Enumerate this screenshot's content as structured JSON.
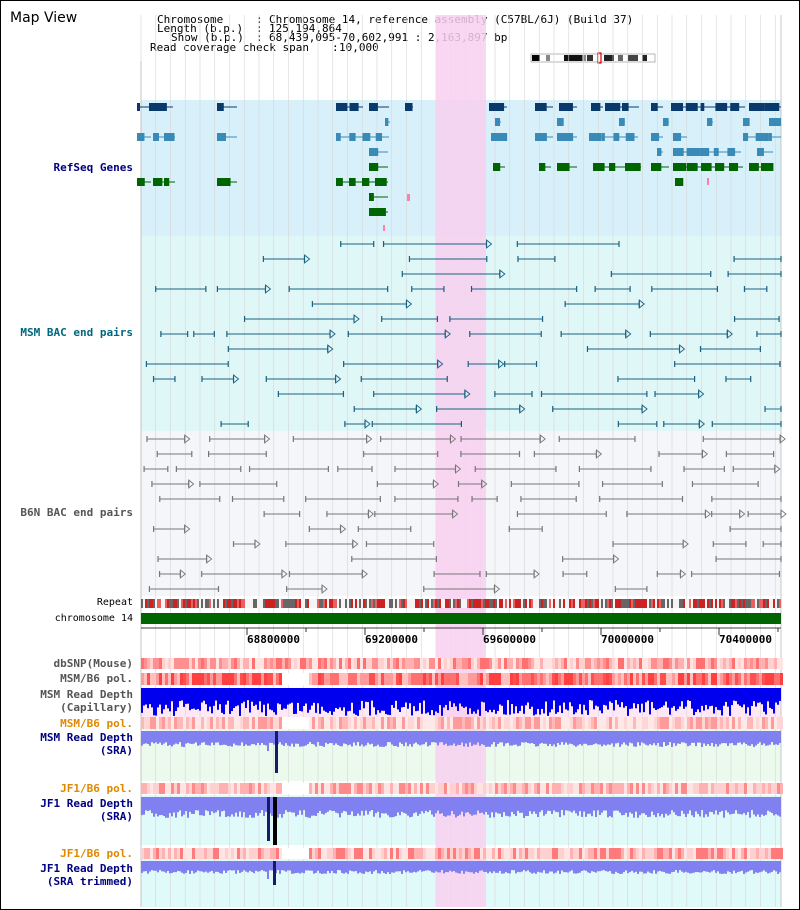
{
  "page": {
    "title": "Map View"
  },
  "header": {
    "chromosome_label": "Chromosome",
    "chromosome_value": "Chromosome 14, reference assembly (C57BL/6J) (Build 37)",
    "length_label": "Length (b.p.)",
    "length_value": "125,194,864",
    "show_label": "Show (b.p.)",
    "show_value": "68,439,095-70,602,991 : 2,163,897 bp",
    "coverage_label": "Read coverage check span",
    "coverage_value": "10,000"
  },
  "tracks": {
    "refseq": "RefSeq Genes",
    "msm_bac": "MSM BAC end pairs",
    "b6n_bac": "B6N BAC end pairs",
    "repeat": "Repeat",
    "chromosome": "chromosome 14",
    "dbsnp": "dbSNP(Mouse)",
    "msm_b6_pol": "MSM/B6 pol.",
    "msm_depth_cap_1": "MSM Read Depth",
    "msm_depth_cap_2": "(Capillary)",
    "msm_b6_pol_sra": "MSM/B6 pol.",
    "msm_depth_sra_1": "MSM Read Depth",
    "msm_depth_sra_2": "(SRA)",
    "jf1_b6_pol": "JF1/B6 pol.",
    "jf1_depth_1": "JF1 Read Depth",
    "jf1_depth_2": "(SRA)",
    "jf1_b6_pol_2": "JF1/B6 pol.",
    "jf1_depth_trim_1": "JF1 Read Depth",
    "jf1_depth_trim_2": "(SRA trimmed)"
  },
  "axis": {
    "ticks": [
      "68800000",
      "69200000",
      "69600000",
      "70000000",
      "70400000"
    ]
  },
  "colors": {
    "highlight": "#f8d0f0",
    "refseq_bg": "#d8f0fa",
    "msm_bac_bg": "#e0f7f7",
    "b6n_bac_bg": "#f4f6f9",
    "refseq_dark": "#0a3a6b",
    "refseq_mid": "#3a8ab8",
    "refseq_green": "#006400",
    "msm_bac_line": "#1a6080",
    "b6n_bac_line": "#777777",
    "chromosome_bar": "#006400",
    "depth_capillary": "#0000ee",
    "depth_sra": "#8080f0",
    "label_navy": "#000080",
    "label_teal": "#006680",
    "label_gray": "#555555",
    "label_orange": "#e08800"
  }
}
